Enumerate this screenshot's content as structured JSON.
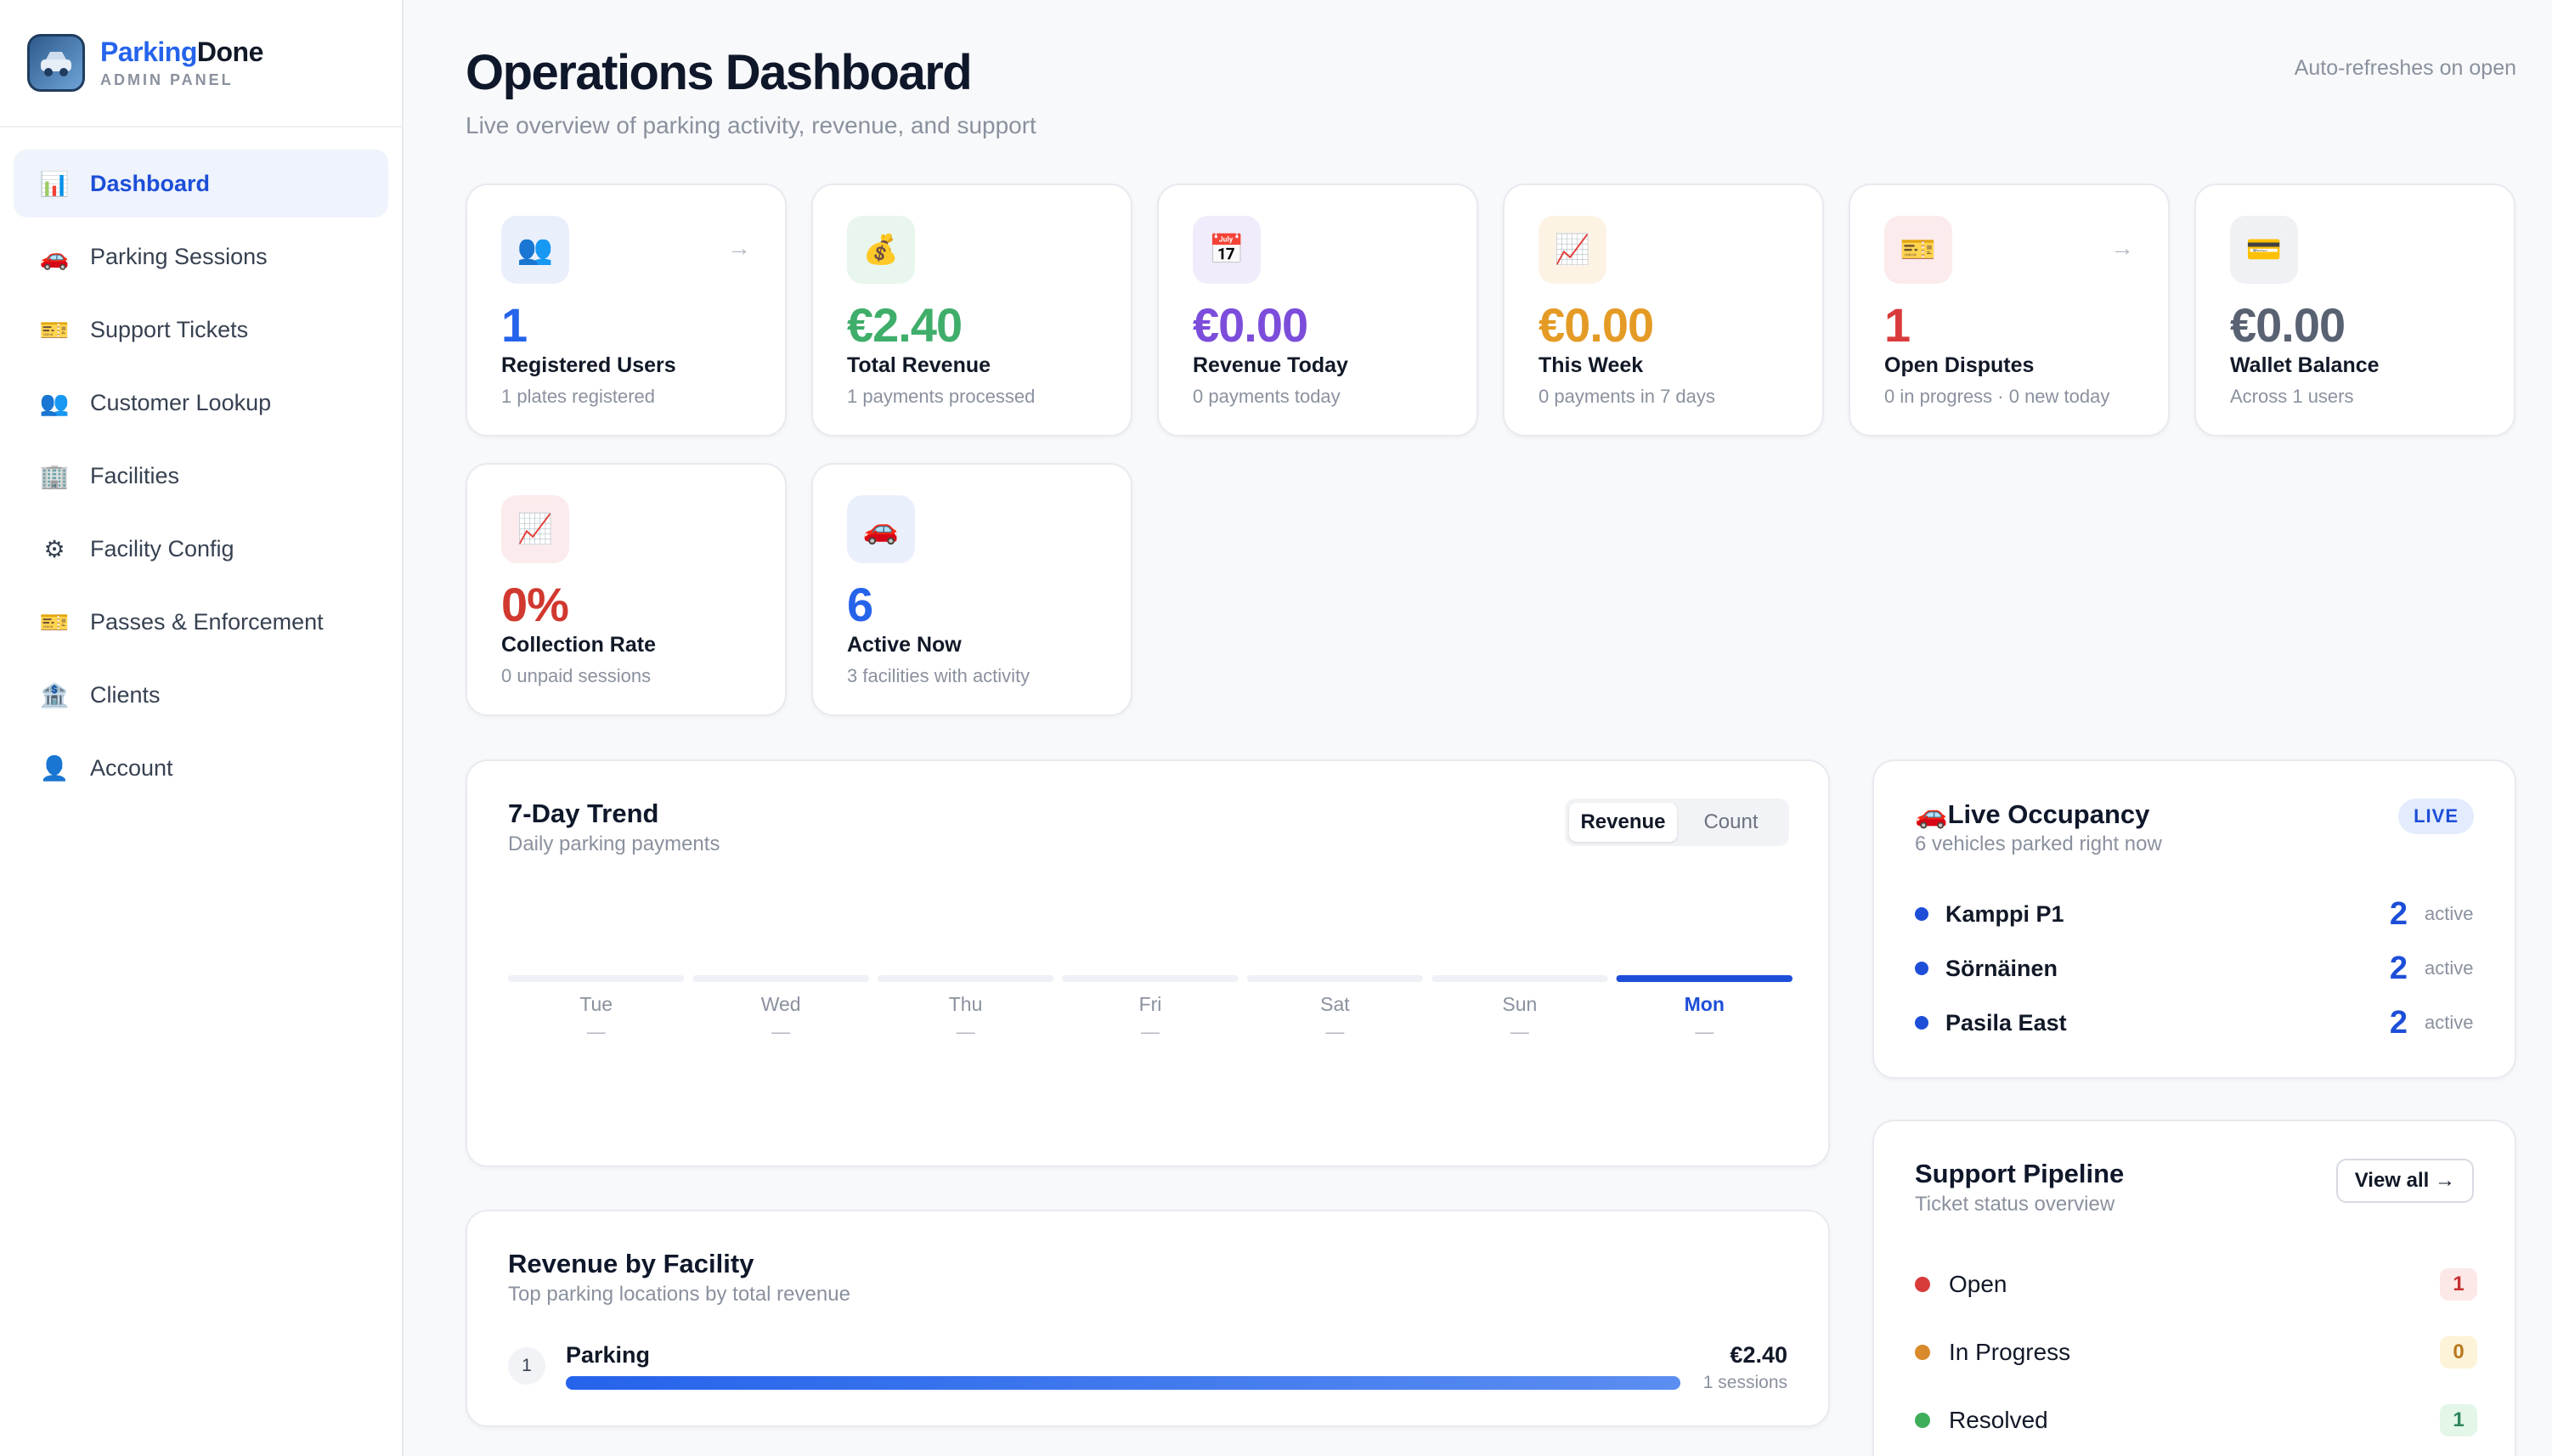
{
  "brand": {
    "name_a": "Parking",
    "name_b": "Done",
    "sub": "ADMIN PANEL"
  },
  "sidebar": {
    "items": [
      {
        "label": "Dashboard",
        "icon": "bar-chart-icon",
        "glyph": "📊",
        "active": true
      },
      {
        "label": "Parking Sessions",
        "icon": "car-icon",
        "glyph": "🚗",
        "active": false
      },
      {
        "label": "Support Tickets",
        "icon": "ticket-icon",
        "glyph": "🎫",
        "active": false
      },
      {
        "label": "Customer Lookup",
        "icon": "users-icon",
        "glyph": "👥",
        "active": false
      },
      {
        "label": "Facilities",
        "icon": "building-icon",
        "glyph": "🏢",
        "active": false
      },
      {
        "label": "Facility Config",
        "icon": "gear-icon",
        "glyph": "⚙",
        "active": false
      },
      {
        "label": "Passes & Enforcement",
        "icon": "ticket-icon",
        "glyph": "🎫",
        "active": false
      },
      {
        "label": "Clients",
        "icon": "bank-icon",
        "glyph": "🏦",
        "active": false
      },
      {
        "label": "Account",
        "icon": "user-icon",
        "glyph": "👤",
        "active": false
      }
    ]
  },
  "header": {
    "title": "Operations Dashboard",
    "subtitle": "Live overview of parking activity, revenue, and support",
    "refresh_note": "Auto-refreshes on open"
  },
  "stats": [
    {
      "value": "1",
      "label": "Registered Users",
      "sub": "1 plates registered",
      "glyph": "👥",
      "icon": "users-icon",
      "color": "#2563eb",
      "bg": "#eaf0fb",
      "arrow": true
    },
    {
      "value": "€2.40",
      "label": "Total Revenue",
      "sub": "1 payments processed",
      "glyph": "💰",
      "icon": "money-bag-icon",
      "color": "#3fae6a",
      "bg": "#e9f6ee",
      "arrow": false
    },
    {
      "value": "€0.00",
      "label": "Revenue Today",
      "sub": "0 payments today",
      "glyph": "📅",
      "icon": "calendar-icon",
      "color": "#7c4ddb",
      "bg": "#f1ecfb",
      "arrow": false
    },
    {
      "value": "€0.00",
      "label": "This Week",
      "sub": "0 payments in 7 days",
      "glyph": "📈",
      "icon": "trend-icon",
      "color": "#e49b26",
      "bg": "#fdf3e5",
      "arrow": false
    },
    {
      "value": "1",
      "label": "Open Disputes",
      "sub": "0 in progress · 0 new today",
      "glyph": "🎫",
      "icon": "ticket-icon",
      "color": "#d93b3b",
      "bg": "#fcebec",
      "arrow": true
    },
    {
      "value": "€0.00",
      "label": "Wallet Balance",
      "sub": "Across 1 users",
      "glyph": "💳",
      "icon": "credit-card-icon",
      "color": "#596272",
      "bg": "#f0f1f4",
      "arrow": false
    },
    {
      "value": "0%",
      "label": "Collection Rate",
      "sub": "0 unpaid sessions",
      "glyph": "📈",
      "icon": "trend-icon",
      "color": "#d1382f",
      "bg": "#fcebec",
      "arrow": false
    },
    {
      "value": "6",
      "label": "Active Now",
      "sub": "3 facilities with activity",
      "glyph": "🚗",
      "icon": "car-icon",
      "color": "#2563eb",
      "bg": "#eaf0fb",
      "arrow": false
    }
  ],
  "trend": {
    "title": "7-Day Trend",
    "subtitle": "Daily parking payments",
    "toggle": [
      "Revenue",
      "Count"
    ],
    "toggle_active": 0
  },
  "chart_data": {
    "type": "bar",
    "categories": [
      "Tue",
      "Wed",
      "Thu",
      "Fri",
      "Sat",
      "Sun",
      "Mon"
    ],
    "values": [
      0,
      0,
      0,
      0,
      0,
      0,
      0
    ],
    "value_labels": [
      "—",
      "—",
      "—",
      "—",
      "—",
      "—",
      "—"
    ],
    "highlight": "Mon",
    "title": "7-Day Trend",
    "subtitle": "Daily parking payments",
    "xlabel": "",
    "ylabel": "",
    "grid": false,
    "colors": {
      "bar": "#eef1f6",
      "highlight": "#1d4ed8"
    }
  },
  "occupancy": {
    "title": "Live Occupancy",
    "title_glyph": "🚗",
    "subtitle": "6 vehicles parked right now",
    "pill": "LIVE",
    "rows": [
      {
        "name": "Kamppi P1",
        "count": "2",
        "status": "active"
      },
      {
        "name": "Sörnäinen",
        "count": "2",
        "status": "active"
      },
      {
        "name": "Pasila East",
        "count": "2",
        "status": "active"
      }
    ]
  },
  "pipeline": {
    "title": "Support Pipeline",
    "subtitle": "Ticket status overview",
    "view_all": "View all →",
    "rows": [
      {
        "name": "Open",
        "count": "1",
        "dot": "#d93b3b",
        "fg": "#c53030",
        "bg": "#fde8e8"
      },
      {
        "name": "In Progress",
        "count": "0",
        "dot": "#d98a2b",
        "fg": "#b7791f",
        "bg": "#fdf3d8"
      },
      {
        "name": "Resolved",
        "count": "1",
        "dot": "#3fae5a",
        "fg": "#2f855a",
        "bg": "#e3f6e8"
      }
    ]
  },
  "facility": {
    "title": "Revenue by Facility",
    "subtitle": "Top parking locations by total revenue",
    "rows": [
      {
        "rank": "1",
        "name": "Parking",
        "amount": "€2.40",
        "sessions": "1 sessions",
        "share": 1.0
      }
    ]
  }
}
